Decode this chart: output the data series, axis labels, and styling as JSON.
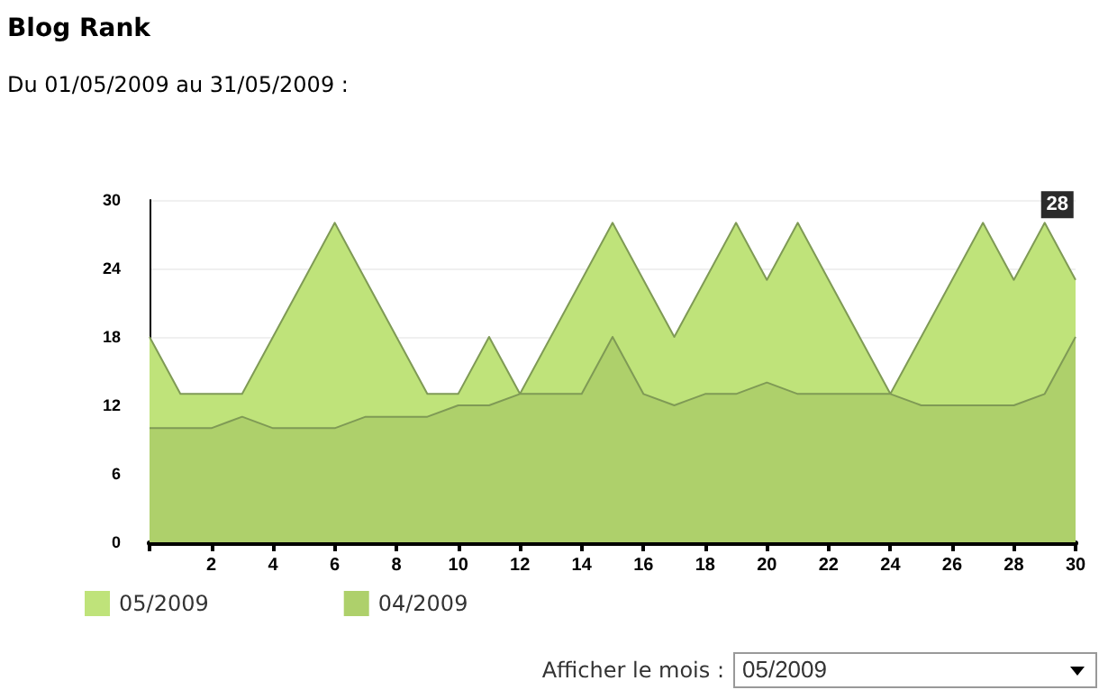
{
  "chart_data": {
    "type": "area",
    "title": "Blog Rank",
    "subtitle": "Du 01/05/2009 au 31/05/2009 :",
    "x": [
      0,
      1,
      2,
      3,
      4,
      5,
      6,
      7,
      8,
      9,
      10,
      11,
      12,
      13,
      14,
      15,
      16,
      17,
      18,
      19,
      20,
      21,
      22,
      23,
      24,
      25,
      26,
      27,
      28,
      29,
      30
    ],
    "series": [
      {
        "name": "05/2009",
        "color": "#bfe37a",
        "values": [
          18,
          13,
          13,
          13,
          18,
          23,
          28,
          23,
          18,
          13,
          13,
          18,
          13,
          18,
          23,
          28,
          23,
          18,
          23,
          28,
          23,
          28,
          23,
          18,
          13,
          18,
          23,
          28,
          23,
          28,
          23
        ]
      },
      {
        "name": "04/2009",
        "color": "#aed06b",
        "values": [
          10,
          10,
          10,
          11,
          10,
          10,
          10,
          11,
          11,
          11,
          12,
          12,
          13,
          13,
          13,
          18,
          13,
          12,
          13,
          13,
          14,
          13,
          13,
          13,
          13,
          12,
          12,
          12,
          12,
          13,
          18
        ]
      }
    ],
    "xlim": [
      0,
      30
    ],
    "xticks": [
      {
        "value": 0,
        "label": null
      },
      2,
      4,
      6,
      8,
      10,
      12,
      14,
      16,
      18,
      20,
      22,
      24,
      26,
      28,
      30
    ],
    "ylim": [
      0,
      30
    ],
    "yticks": [
      0,
      6,
      12,
      18,
      24,
      30
    ],
    "grid": "y",
    "legend": "bottom left",
    "marker": "none",
    "annotations": [
      {
        "text": "28",
        "x": 29,
        "y": 28
      },
      "Afficher le mois :",
      "05/2009"
    ]
  }
}
